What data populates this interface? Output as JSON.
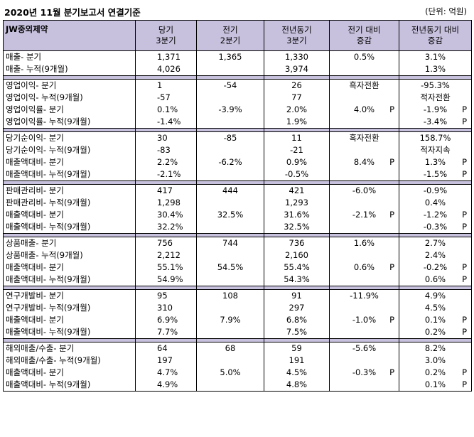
{
  "header": {
    "title": "2020년 11월 분기보고서 연결기준",
    "unit": "(단위: 억원)"
  },
  "columns": [
    "JW중외제약",
    "당기\n3분기",
    "전기\n2분기",
    "전년동기\n3분기",
    "전기 대비\n증감",
    "전년동기 대비\n증감"
  ],
  "sections": [
    [
      [
        "매출- 분기",
        "1,371",
        "1,365",
        "1,330",
        "0.5%",
        "3.1%"
      ],
      [
        "매출- 누적(9개월)",
        "4,026",
        "",
        "3,974",
        "",
        "1.3%"
      ]
    ],
    [
      [
        "영업이익- 분기",
        "1",
        "-54",
        "26",
        "흑자전환",
        "-95.3%"
      ],
      [
        "영업이익- 누적(9개월)",
        "-57",
        "",
        "77",
        "",
        "적자전환"
      ],
      [
        "영업이익률- 분기",
        "0.1%",
        "-3.9%",
        "2.0%",
        "4.0% P",
        "-1.9% P"
      ],
      [
        "영업이익률- 누적(9개월)",
        "-1.4%",
        "",
        "1.9%",
        "",
        "-3.4% P"
      ]
    ],
    [
      [
        "당기순이익- 분기",
        "30",
        "-85",
        "11",
        "흑자전환",
        "158.7%"
      ],
      [
        "당기순이익- 누적(9개월)",
        "-83",
        "",
        "-21",
        "",
        "적자지속"
      ],
      [
        "매출액대비- 분기",
        "2.2%",
        "-6.2%",
        "0.9%",
        "8.4% P",
        "1.3% P"
      ],
      [
        "매출액대비- 누적(9개월)",
        "-2.1%",
        "",
        "-0.5%",
        "",
        "-1.5% P"
      ]
    ],
    [
      [
        "판매관리비- 분기",
        "417",
        "444",
        "421",
        "-6.0%",
        "-0.9%"
      ],
      [
        "판매관리비- 누적(9개월)",
        "1,298",
        "",
        "1,293",
        "",
        "0.4%"
      ],
      [
        "매출액대비- 분기",
        "30.4%",
        "32.5%",
        "31.6%",
        "-2.1% P",
        "-1.2% P"
      ],
      [
        "매출액대비- 누적(9개월)",
        "32.2%",
        "",
        "32.5%",
        "",
        "-0.3% P"
      ]
    ],
    [
      [
        "상품매출- 분기",
        "756",
        "744",
        "736",
        "1.6%",
        "2.7%"
      ],
      [
        "상품매출- 누적(9개월)",
        "2,212",
        "",
        "2,160",
        "",
        "2.4%"
      ],
      [
        "매출액대비- 분기",
        "55.1%",
        "54.5%",
        "55.4%",
        "0.6% P",
        "-0.2% P"
      ],
      [
        "매출액대비- 누적(9개월)",
        "54.9%",
        "",
        "54.3%",
        "",
        "0.6% P"
      ]
    ],
    [
      [
        "연구개발비- 분기",
        "95",
        "108",
        "91",
        "-11.9%",
        "4.9%"
      ],
      [
        "연구개발비- 누적(9개월)",
        "310",
        "",
        "297",
        "",
        "4.5%"
      ],
      [
        "매출액대비- 분기",
        "6.9%",
        "7.9%",
        "6.8%",
        "-1.0% P",
        "0.1% P"
      ],
      [
        "매출액대비- 누적(9개월)",
        "7.7%",
        "",
        "7.5%",
        "",
        "0.2% P"
      ]
    ],
    [
      [
        "해외매출/수출- 분기",
        "64",
        "68",
        "59",
        "-5.6%",
        "8.2%"
      ],
      [
        "해외매출/수출- 누적(9개월)",
        "197",
        "",
        "191",
        "",
        "3.0%"
      ],
      [
        "매출액대비- 분기",
        "4.7%",
        "5.0%",
        "4.5%",
        "-0.3% P",
        "0.2% P"
      ],
      [
        "매출액대비- 누적(9개월)",
        "4.9%",
        "",
        "4.8%",
        "",
        "0.1% P"
      ]
    ]
  ]
}
